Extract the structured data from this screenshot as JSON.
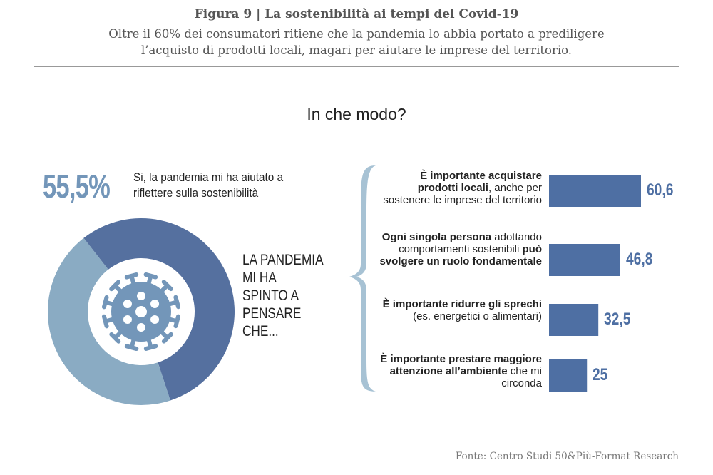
{
  "header": {
    "title": "Figura 9 | La sostenibilità ai tempi del Covid-19",
    "subtitle": "Oltre il 60% dei consumatori ritiene che la pandemia lo abbia portato a prediligere l’acquisto di prodotti locali, magari per aiutare le imprese del territorio."
  },
  "question": "In che modo?",
  "colors": {
    "dark": "#55709f",
    "light": "#8aabc3",
    "bar": "#4e6fa3",
    "icon": "#7396b9",
    "brace": "#a7c2d4"
  },
  "chart_data": [
    {
      "type": "pie",
      "variant": "donut",
      "values": [
        55.5,
        44.5
      ],
      "callout_value": "55,5%",
      "callout_label": "Si, la pandemia mi ha aiutato a riflettere sulla sostenibilità",
      "center_icon": "virus-icon",
      "side_label": "LA PANDEMIA MI HA SPINTO A PENSARE CHE..."
    },
    {
      "type": "bar",
      "orientation": "horizontal",
      "categories": [
        [
          {
            "t": "È importante acquistare prodotti locali",
            "b": true
          },
          {
            "t": ", anche per sostenere le imprese del territorio",
            "b": false
          }
        ],
        [
          {
            "t": "Ogni singola persona",
            "b": true
          },
          {
            "t": " adottando comportamenti sostenibili ",
            "b": false
          },
          {
            "t": "può svolgere un ruolo fondamentale",
            "b": true
          }
        ],
        [
          {
            "t": "È importante ridurre gli sprechi",
            "b": true
          },
          {
            "t": " (es. energetici o alimentari)",
            "b": false
          }
        ],
        [
          {
            "t": "È importante prestare maggiore attenzione all’ambiente",
            "b": true
          },
          {
            "t": " che mi circonda",
            "b": false
          }
        ]
      ],
      "values": [
        60.6,
        46.8,
        32.5,
        25
      ],
      "value_labels": [
        "60,6",
        "46,8",
        "32,5",
        "25"
      ]
    }
  ],
  "footer": {
    "source": "Fonte: Centro Studi 50&Più-Format Research"
  }
}
